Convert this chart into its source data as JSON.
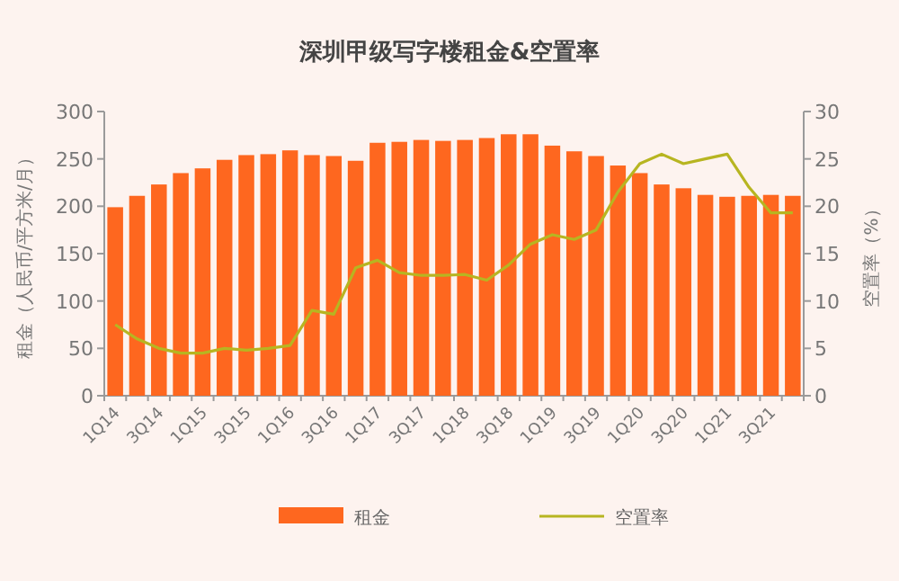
{
  "chart_data": {
    "type": "bar",
    "title": "深圳甲级写字楼租金&空置率",
    "categories": [
      "1Q14",
      null,
      "3Q14",
      null,
      "1Q15",
      null,
      "3Q15",
      null,
      "1Q16",
      null,
      "3Q16",
      null,
      "1Q17",
      null,
      "3Q17",
      null,
      "1Q18",
      null,
      "3Q18",
      null,
      "1Q19",
      null,
      "3Q19",
      null,
      "1Q20",
      null,
      "3Q20",
      null,
      "1Q21",
      null,
      "3Q21",
      null
    ],
    "series": [
      {
        "name": "租金",
        "color": "#fe671f",
        "values": [
          199,
          211,
          223,
          235,
          240,
          249,
          254,
          255,
          259,
          254,
          253,
          248,
          267,
          268,
          270,
          269,
          270,
          272,
          276,
          276,
          264,
          258,
          253,
          243,
          235,
          223,
          219,
          212,
          210,
          211,
          212,
          211
        ]
      },
      {
        "name": "空置率",
        "type": "line",
        "axis": "y2",
        "color": "#b7b521",
        "values": [
          7.5,
          6,
          5,
          4.5,
          4.5,
          5,
          4.8,
          5,
          5.3,
          9,
          8.6,
          13.5,
          14.3,
          13,
          12.7,
          12.7,
          12.8,
          12.2,
          13.8,
          16,
          17,
          16.5,
          17.5,
          21.5,
          24.5,
          25.5,
          24.5,
          25,
          25.5,
          22,
          19.3,
          19.3
        ]
      }
    ],
    "ylabel": "租金（人民币/平方米/月）",
    "y2label": "空置率（%）",
    "ylim": [
      0,
      300
    ],
    "yticks": [
      0,
      50,
      100,
      150,
      200,
      250,
      300
    ],
    "y2lim": [
      0,
      30
    ],
    "y2ticks": [
      0,
      5,
      10,
      15,
      20,
      25,
      30
    ],
    "legend": "bottom"
  }
}
